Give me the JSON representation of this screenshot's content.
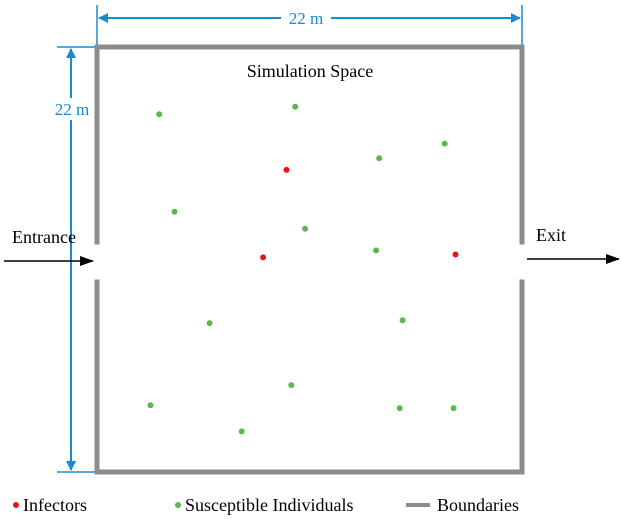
{
  "title": "Simulation Space",
  "dimensions": {
    "width_label": "22 m",
    "height_label": "22 m"
  },
  "labels": {
    "entrance": "Entrance",
    "exit": "Exit"
  },
  "legend": {
    "infectors": "Infectors",
    "susceptible": "Susceptible Individuals",
    "boundaries": "Boundaries"
  },
  "colors": {
    "infector": "#e8141c",
    "susceptible": "#5cb84e",
    "boundary": "#8c8c8c",
    "dimension": "#1a8ad0",
    "arrow": "#000000"
  },
  "space_size_m": 22,
  "individuals": [
    {
      "type": "susceptible",
      "x_m": 3.22,
      "y_m": 18.52
    },
    {
      "type": "susceptible",
      "x_m": 10.26,
      "y_m": 18.91
    },
    {
      "type": "susceptible",
      "x_m": 18.0,
      "y_m": 17.0
    },
    {
      "type": "susceptible",
      "x_m": 14.61,
      "y_m": 16.24
    },
    {
      "type": "infector",
      "x_m": 9.81,
      "y_m": 15.64
    },
    {
      "type": "susceptible",
      "x_m": 4.01,
      "y_m": 13.47
    },
    {
      "type": "susceptible",
      "x_m": 10.77,
      "y_m": 12.59
    },
    {
      "type": "susceptible",
      "x_m": 14.45,
      "y_m": 11.47
    },
    {
      "type": "infector",
      "x_m": 8.6,
      "y_m": 11.11
    },
    {
      "type": "infector",
      "x_m": 18.56,
      "y_m": 11.26
    },
    {
      "type": "susceptible",
      "x_m": 5.83,
      "y_m": 7.71
    },
    {
      "type": "susceptible",
      "x_m": 15.82,
      "y_m": 7.86
    },
    {
      "type": "susceptible",
      "x_m": 10.06,
      "y_m": 4.5
    },
    {
      "type": "susceptible",
      "x_m": 2.77,
      "y_m": 3.46
    },
    {
      "type": "susceptible",
      "x_m": 15.67,
      "y_m": 3.31
    },
    {
      "type": "susceptible",
      "x_m": 18.46,
      "y_m": 3.31
    },
    {
      "type": "susceptible",
      "x_m": 7.49,
      "y_m": 2.1
    }
  ]
}
